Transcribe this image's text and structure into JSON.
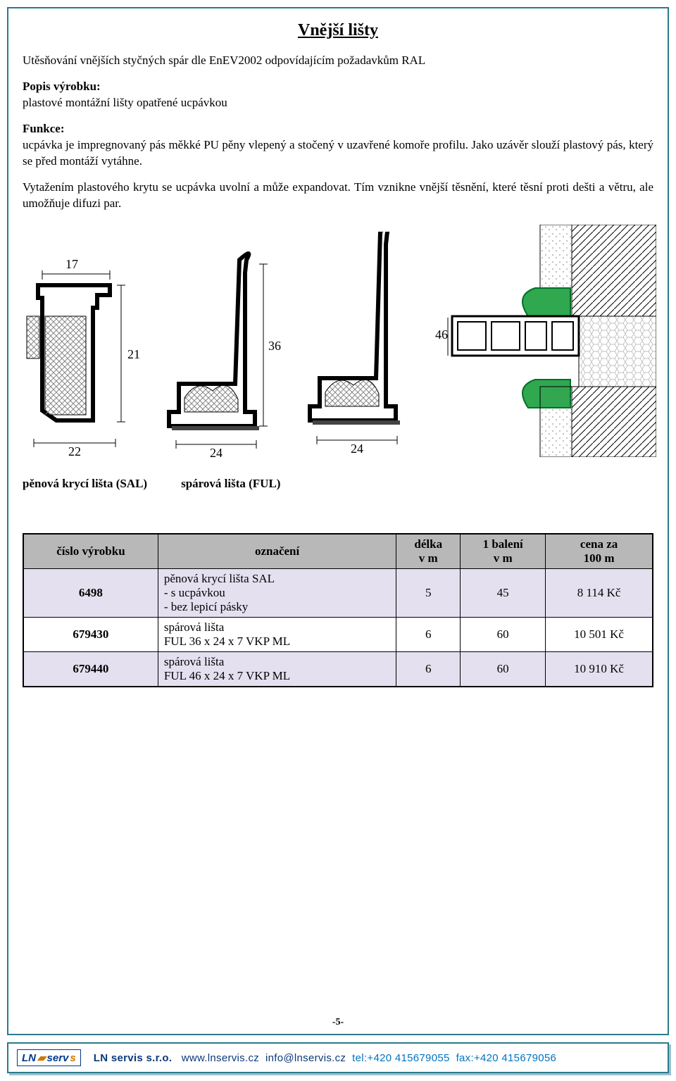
{
  "page": {
    "title": "Vnější lišty",
    "intro": "Utěsňování vnějších styčných spár dle EnEV2002 odpovídajícím požadavkům RAL",
    "popis_label": "Popis výrobku:",
    "popis_text": "plastové montážní lišty opatřené ucpávkou",
    "funkce_label": "Funkce:",
    "funkce_text": "ucpávka je impregnovaný pás měkké PU pěny vlepený a stočený v uzavřené komoře profilu. Jako uzávěr slouží plastový pás, který se před montáží vytáhne.",
    "funkce_text2": "Vytažením plastového krytu se ucpávka uvolní a může expandovat. Tím vznikne vnější těsnění, které těsní proti dešti a větru, ale umožňuje difuzi par.",
    "caption_left": "pěnová krycí lišta (SAL)",
    "caption_right": "spárová lišta (FUL)",
    "page_number": "-5-"
  },
  "diagram": {
    "dims": {
      "d17": "17",
      "d21": "21",
      "d22": "22",
      "d24a": "24",
      "d24b": "24",
      "d36": "36",
      "d46": "46"
    },
    "colors": {
      "stroke": "#000000",
      "fill_hatch": "#d9d9d9",
      "foam": "#ffffff",
      "green": "#2fa84f"
    }
  },
  "table": {
    "headers": {
      "id": "číslo výrobku",
      "desc": "označení",
      "len": "délka\nv m",
      "pack": "1 balení\nv m",
      "price": "cena za\n100 m"
    },
    "rows": [
      {
        "alt": true,
        "id": "6498",
        "desc": "pěnová krycí lišta SAL\n- s ucpávkou\n- bez lepicí pásky",
        "len": "5",
        "pack": "45",
        "price": "8 114 Kč"
      },
      {
        "alt": false,
        "id": "679430",
        "desc": "spárová lišta\nFUL 36 x 24 x 7 VKP ML",
        "len": "6",
        "pack": "60",
        "price": "10 501 Kč"
      },
      {
        "alt": true,
        "id": "679440",
        "desc": "spárová lišta\nFUL 46 x 24 x 7 VKP ML",
        "len": "6",
        "pack": "60",
        "price": "10 910 Kč"
      }
    ]
  },
  "footer": {
    "logo_text": "LN",
    "logo_text2": "serv",
    "logo_text3": "s",
    "company": "LN  servis  s.r.o.",
    "web": "www.lnservis.cz",
    "email": "info@lnservis.cz",
    "tel": "tel:+420 415679055",
    "fax": "fax:+420 415679056"
  }
}
